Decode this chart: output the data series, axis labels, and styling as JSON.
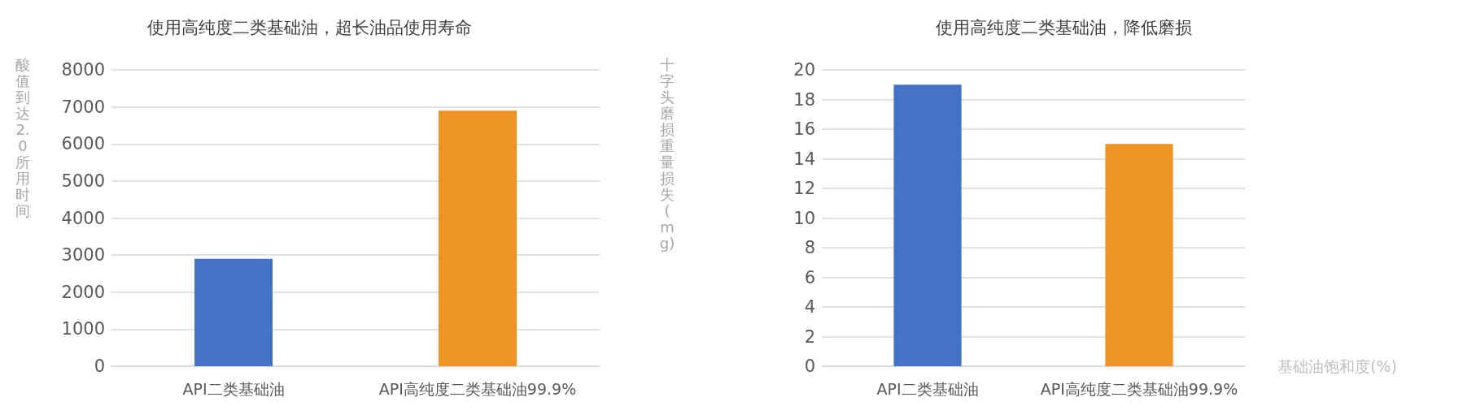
{
  "chart_data": [
    {
      "type": "bar",
      "title": "使用高纯度二类基础油，超长油品使用寿命",
      "ylabel": "酸值到达2.0所用时间",
      "categories": [
        "API二类基础油",
        "API高纯度二类基础油99.9%"
      ],
      "values": [
        2900,
        6900
      ],
      "colors": [
        "#4472c4",
        "#ed9524"
      ],
      "ylim": [
        0,
        8000
      ],
      "yticks": [
        0,
        1000,
        2000,
        3000,
        4000,
        5000,
        6000,
        7000,
        8000
      ],
      "grid": "y"
    },
    {
      "type": "bar",
      "title": "使用高纯度二类基础油，降低磨损",
      "ylabel": "十字头磨损重量损失(mg)",
      "xlabel": "基础油饱和度(%)",
      "categories": [
        "API二类基础油",
        "API高纯度二类基础油99.9%"
      ],
      "values": [
        19,
        15
      ],
      "colors": [
        "#4472c4",
        "#ed9524"
      ],
      "ylim": [
        0,
        20
      ],
      "yticks": [
        0,
        2,
        4,
        6,
        8,
        10,
        12,
        14,
        16,
        18,
        20
      ],
      "grid": "y"
    }
  ]
}
